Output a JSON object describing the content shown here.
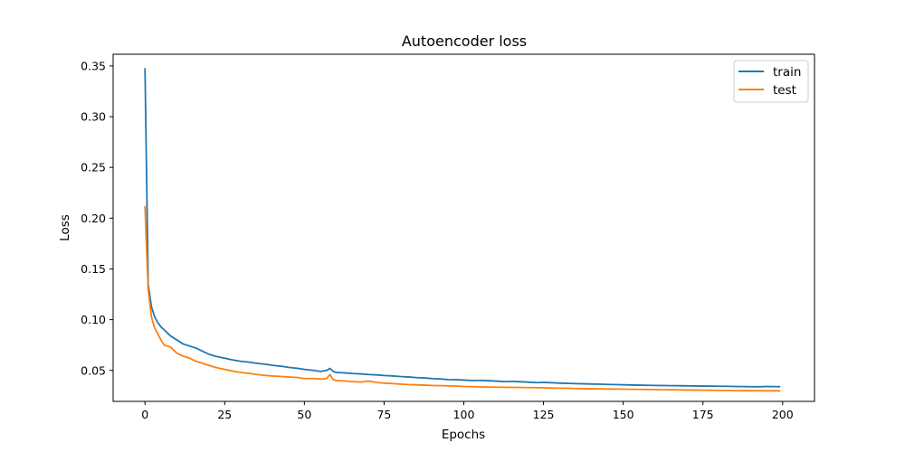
{
  "chart_data": {
    "type": "line",
    "title": "Autoencoder loss",
    "xlabel": "Epochs",
    "ylabel": "Loss",
    "xlim": [
      -10,
      210
    ],
    "ylim": [
      0.0195,
      0.3615
    ],
    "xticks": [
      0,
      25,
      50,
      75,
      100,
      125,
      150,
      175,
      200
    ],
    "yticks": [
      0.05,
      0.1,
      0.15,
      0.2,
      0.25,
      0.3,
      0.35
    ],
    "ytick_labels": [
      "0.05",
      "0.10",
      "0.15",
      "0.20",
      "0.25",
      "0.30",
      "0.35"
    ],
    "grid": false,
    "legend_position": "top-right",
    "series": [
      {
        "name": "train",
        "color": "#1f77b4",
        "x": [
          0,
          1,
          2,
          3,
          4,
          5,
          6,
          7,
          8,
          9,
          10,
          12,
          14,
          16,
          18,
          20,
          22,
          25,
          28,
          30,
          33,
          35,
          38,
          40,
          43,
          45,
          48,
          50,
          53,
          55,
          57,
          58,
          59,
          60,
          63,
          65,
          68,
          70,
          73,
          75,
          78,
          80,
          83,
          85,
          88,
          90,
          93,
          95,
          98,
          100,
          103,
          105,
          108,
          110,
          113,
          115,
          118,
          120,
          123,
          125,
          128,
          130,
          133,
          135,
          138,
          140,
          143,
          145,
          148,
          150,
          153,
          155,
          158,
          160,
          163,
          165,
          168,
          170,
          173,
          175,
          178,
          180,
          183,
          185,
          188,
          190,
          193,
          195,
          199
        ],
        "values": [
          0.347,
          0.135,
          0.113,
          0.103,
          0.097,
          0.093,
          0.09,
          0.087,
          0.084,
          0.082,
          0.08,
          0.076,
          0.074,
          0.072,
          0.069,
          0.066,
          0.064,
          0.062,
          0.06,
          0.059,
          0.058,
          0.057,
          0.056,
          0.055,
          0.054,
          0.053,
          0.052,
          0.051,
          0.05,
          0.049,
          0.05,
          0.052,
          0.049,
          0.048,
          0.0475,
          0.047,
          0.0465,
          0.046,
          0.0455,
          0.045,
          0.0445,
          0.044,
          0.0435,
          0.043,
          0.0425,
          0.042,
          0.0415,
          0.041,
          0.0408,
          0.0405,
          0.04,
          0.0402,
          0.0398,
          0.0395,
          0.039,
          0.0392,
          0.0388,
          0.0385,
          0.038,
          0.0382,
          0.0378,
          0.0375,
          0.0372,
          0.037,
          0.0368,
          0.0366,
          0.0364,
          0.0362,
          0.036,
          0.0358,
          0.0356,
          0.0355,
          0.0353,
          0.0352,
          0.0351,
          0.035,
          0.0349,
          0.0348,
          0.0347,
          0.0346,
          0.0345,
          0.0344,
          0.0343,
          0.0342,
          0.0341,
          0.034,
          0.0339,
          0.0342,
          0.034
        ]
      },
      {
        "name": "test",
        "color": "#ff7f0e",
        "x": [
          0,
          1,
          2,
          3,
          4,
          5,
          6,
          7,
          8,
          9,
          10,
          12,
          14,
          16,
          18,
          20,
          22,
          25,
          28,
          30,
          33,
          35,
          38,
          40,
          43,
          45,
          48,
          50,
          53,
          55,
          57,
          58,
          59,
          60,
          63,
          65,
          68,
          70,
          73,
          75,
          78,
          80,
          83,
          85,
          88,
          90,
          93,
          95,
          98,
          100,
          103,
          105,
          108,
          110,
          113,
          115,
          118,
          120,
          123,
          125,
          128,
          130,
          133,
          135,
          138,
          140,
          143,
          145,
          148,
          150,
          153,
          155,
          158,
          160,
          163,
          165,
          168,
          170,
          173,
          175,
          178,
          180,
          183,
          185,
          188,
          190,
          193,
          195,
          199
        ],
        "values": [
          0.211,
          0.13,
          0.103,
          0.092,
          0.086,
          0.08,
          0.075,
          0.074,
          0.073,
          0.07,
          0.067,
          0.064,
          0.062,
          0.059,
          0.057,
          0.055,
          0.053,
          0.051,
          0.049,
          0.048,
          0.047,
          0.046,
          0.045,
          0.0445,
          0.044,
          0.0435,
          0.043,
          0.042,
          0.042,
          0.0415,
          0.042,
          0.046,
          0.041,
          0.04,
          0.0395,
          0.039,
          0.0385,
          0.0395,
          0.038,
          0.0375,
          0.037,
          0.0365,
          0.036,
          0.0358,
          0.0355,
          0.0352,
          0.035,
          0.0348,
          0.0345,
          0.0342,
          0.034,
          0.0338,
          0.0336,
          0.0335,
          0.0334,
          0.0333,
          0.0332,
          0.0331,
          0.033,
          0.0328,
          0.0326,
          0.0325,
          0.0324,
          0.0322,
          0.032,
          0.0319,
          0.0318,
          0.0317,
          0.0316,
          0.0315,
          0.0314,
          0.0313,
          0.0312,
          0.0311,
          0.031,
          0.0309,
          0.0308,
          0.0307,
          0.0306,
          0.0305,
          0.0304,
          0.0303,
          0.0302,
          0.0301,
          0.03,
          0.03,
          0.0299,
          0.0299,
          0.0299
        ]
      }
    ]
  }
}
